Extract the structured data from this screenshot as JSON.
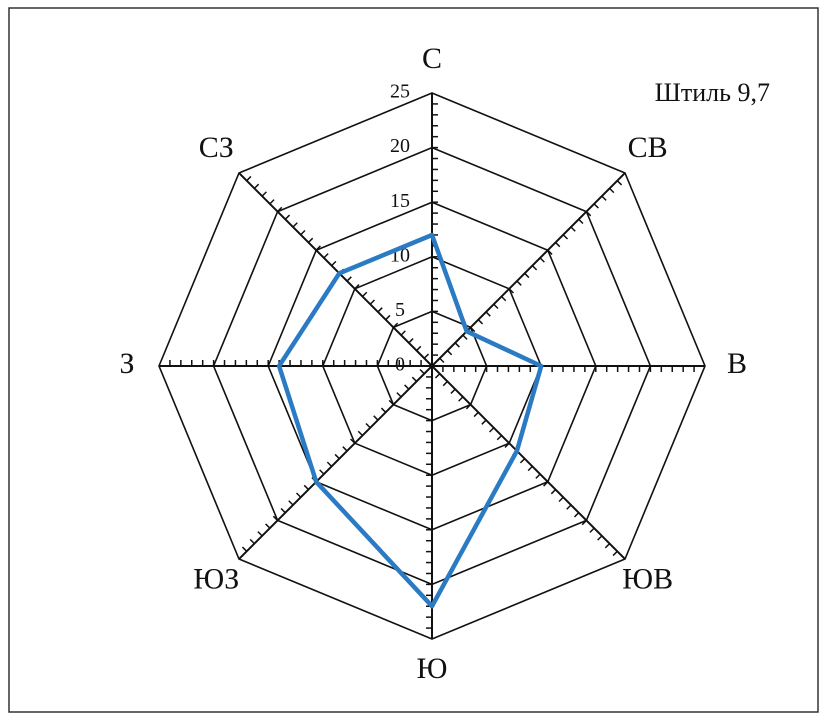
{
  "chart_data": {
    "type": "radar",
    "annotation": "Штиль 9,7",
    "categories": [
      "С",
      "СВ",
      "В",
      "ЮВ",
      "Ю",
      "ЮЗ",
      "З",
      "СЗ"
    ],
    "values": [
      12,
      4.5,
      10,
      11,
      22,
      15,
      14,
      12
    ],
    "color": "#2a7bc4",
    "rlim": [
      0,
      25
    ],
    "rticks": [
      0,
      5,
      10,
      15,
      20,
      25
    ],
    "minor_tick_step": 1,
    "grid": true
  }
}
